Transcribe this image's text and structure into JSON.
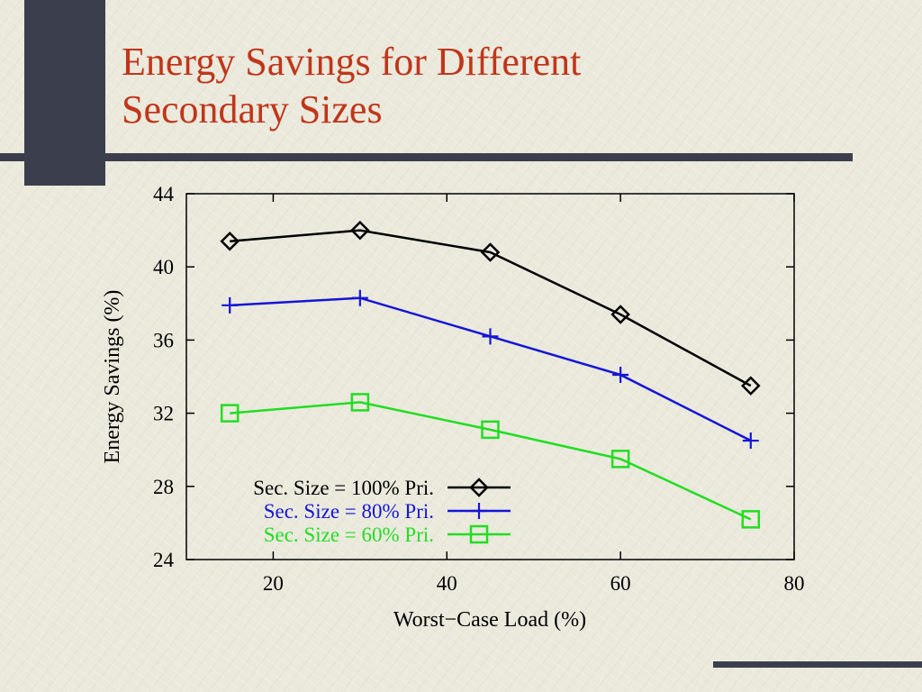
{
  "slide": {
    "title_lines": [
      "Energy Savings for Different",
      "Secondary Sizes"
    ]
  },
  "chart_data": {
    "type": "line",
    "xlabel": "Worst−Case Load (%)",
    "ylabel": "Energy Savings (%)",
    "xlim": [
      10,
      80
    ],
    "ylim": [
      24,
      44
    ],
    "x_ticks": [
      20,
      40,
      60,
      80
    ],
    "y_ticks": [
      24,
      28,
      32,
      36,
      40,
      44
    ],
    "grid": false,
    "legend_position": "bottom-left",
    "series": [
      {
        "name": "Sec. Size = 100% Pri.",
        "color": "#000000",
        "marker": "diamond",
        "x": [
          15,
          30,
          45,
          60,
          75
        ],
        "y": [
          41.4,
          42.0,
          40.8,
          37.4,
          33.5
        ]
      },
      {
        "name": "Sec. Size = 80% Pri.",
        "color": "#1515d6",
        "marker": "plus",
        "x": [
          15,
          30,
          45,
          60,
          75
        ],
        "y": [
          37.9,
          38.3,
          36.2,
          34.1,
          30.5
        ]
      },
      {
        "name": "Sec. Size = 60% Pri.",
        "color": "#22dd22",
        "marker": "square",
        "x": [
          15,
          30,
          45,
          60,
          75
        ],
        "y": [
          32.0,
          32.6,
          31.1,
          29.5,
          26.2
        ]
      }
    ]
  }
}
